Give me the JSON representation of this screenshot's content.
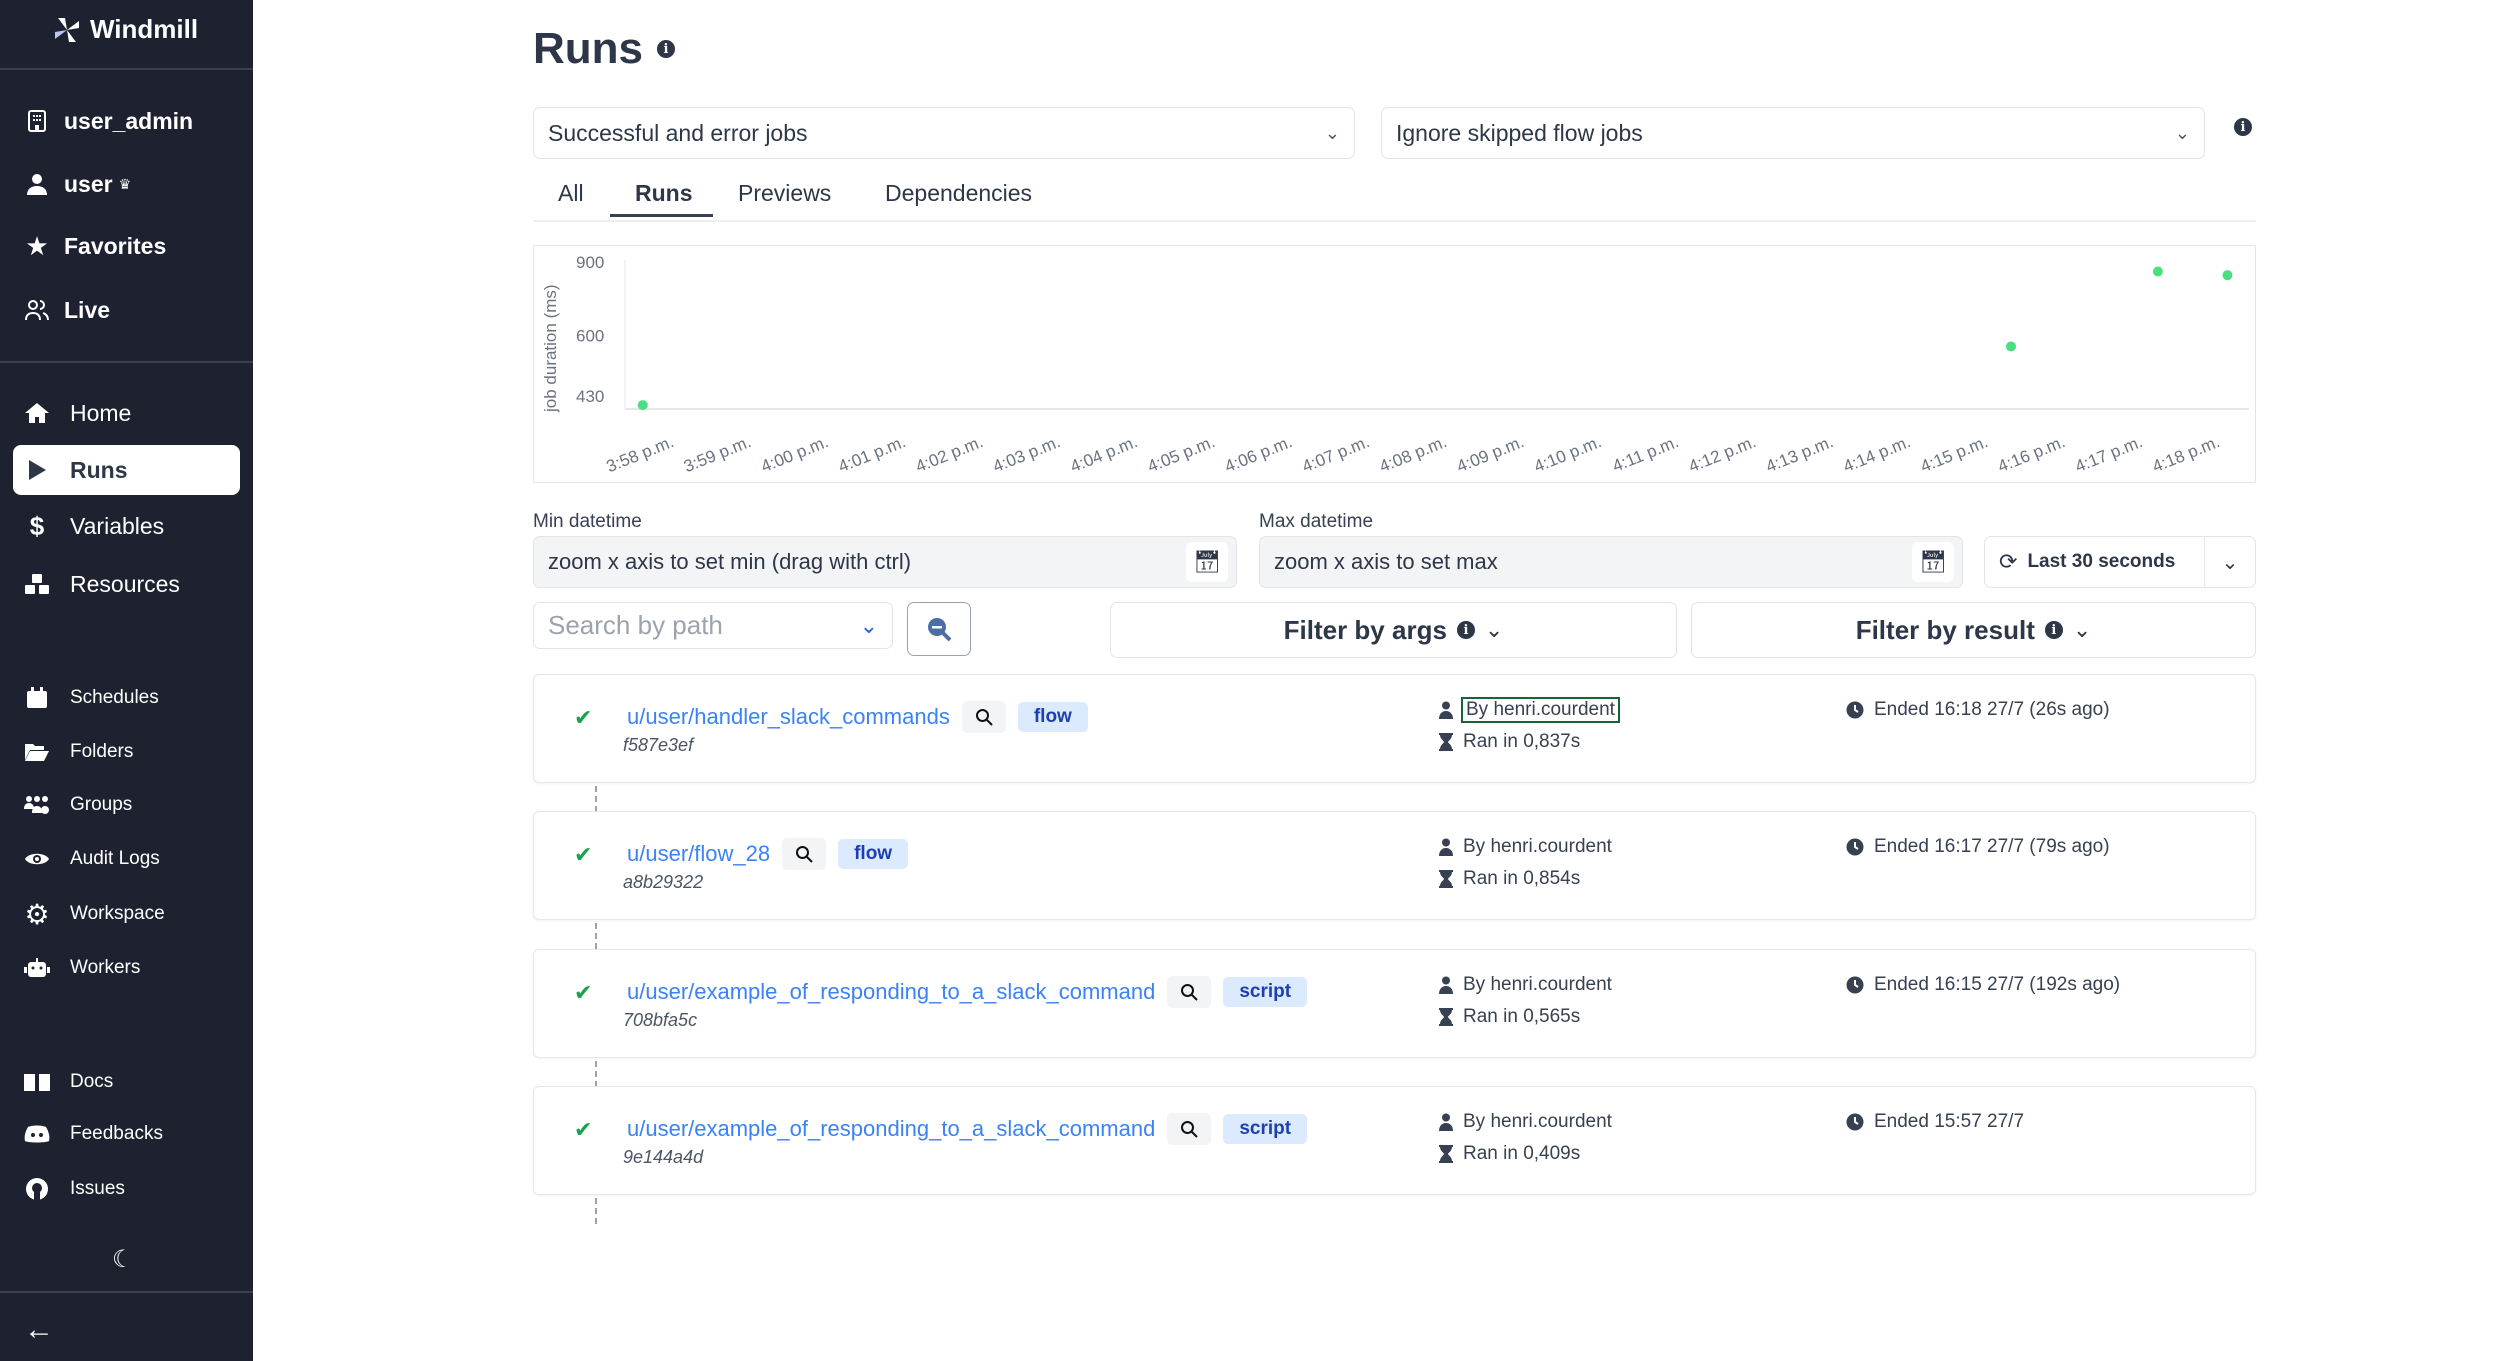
{
  "sidebar": {
    "brand": "Windmill",
    "top_items": [
      {
        "label": "user_admin",
        "icon": "building-icon"
      },
      {
        "label": "user",
        "icon": "user-icon",
        "badge_icon": "crown-icon"
      },
      {
        "label": "Favorites",
        "icon": "star-icon"
      },
      {
        "label": "Live",
        "icon": "users-icon"
      }
    ],
    "main_items": [
      {
        "label": "Home",
        "icon": "home-icon"
      },
      {
        "label": "Runs",
        "icon": "play-icon",
        "active": true
      },
      {
        "label": "Variables",
        "icon": "dollar-icon"
      },
      {
        "label": "Resources",
        "icon": "cubes-icon"
      }
    ],
    "secondary_items": [
      {
        "label": "Schedules",
        "icon": "calendar-icon"
      },
      {
        "label": "Folders",
        "icon": "folder-open-icon"
      },
      {
        "label": "Groups",
        "icon": "users-cog-icon"
      },
      {
        "label": "Audit Logs",
        "icon": "eye-icon"
      },
      {
        "label": "Workspace",
        "icon": "gear-icon"
      },
      {
        "label": "Workers",
        "icon": "robot-icon"
      }
    ],
    "help_items": [
      {
        "label": "Docs",
        "icon": "book-icon"
      },
      {
        "label": "Feedbacks",
        "icon": "discord-icon"
      },
      {
        "label": "Issues",
        "icon": "github-icon"
      }
    ]
  },
  "page": {
    "title": "Runs"
  },
  "filters": {
    "job_kind": "Successful and error jobs",
    "skipped": "Ignore skipped flow jobs"
  },
  "tabs": [
    {
      "label": "All"
    },
    {
      "label": "Runs",
      "active": true
    },
    {
      "label": "Previews"
    },
    {
      "label": "Dependencies"
    }
  ],
  "chart_data": {
    "type": "scatter",
    "ylabel": "job duration (ms)",
    "xlabel": "",
    "yscale": "log",
    "yticks": [
      430,
      600,
      900
    ],
    "xticks": [
      "3:58 p.m.",
      "3:59 p.m.",
      "4:00 p.m.",
      "4:01 p.m.",
      "4:02 p.m.",
      "4:03 p.m.",
      "4:04 p.m.",
      "4:05 p.m.",
      "4:06 p.m.",
      "4:07 p.m.",
      "4:08 p.m.",
      "4:09 p.m.",
      "4:10 p.m.",
      "4:11 p.m.",
      "4:12 p.m.",
      "4:13 p.m.",
      "4:14 p.m.",
      "4:15 p.m.",
      "4:16 p.m.",
      "4:17 p.m.",
      "4:18 p.m."
    ],
    "points": [
      {
        "x": "15:57:35",
        "y": 409
      },
      {
        "x": "16:15:17",
        "y": 565
      },
      {
        "x": "16:17:11",
        "y": 854
      },
      {
        "x": "16:18:05",
        "y": 837
      }
    ],
    "color": "#4ade80",
    "grid": false
  },
  "datetime": {
    "min_label": "Min datetime",
    "min_value": "zoom x axis to set min (drag with ctrl)",
    "max_label": "Max datetime",
    "max_value": "zoom x axis to set max",
    "refresh": "Last 30 seconds"
  },
  "search": {
    "placeholder": "Search by path"
  },
  "filter_args": "Filter by args",
  "filter_result": "Filter by result",
  "runs": [
    {
      "path": "u/user/handler_slack_commands",
      "kind": "flow",
      "hash": "f587e3ef",
      "by": "By henri.courdent",
      "ran": "Ran in 0,837s",
      "ended": "Ended 16:18 27/7 (26s ago)"
    },
    {
      "path": "u/user/flow_28",
      "kind": "flow",
      "hash": "a8b29322",
      "by": "By henri.courdent",
      "ran": "Ran in 0,854s",
      "ended": "Ended 16:17 27/7 (79s ago)"
    },
    {
      "path": "u/user/example_of_responding_to_a_slack_command",
      "kind": "script",
      "hash": "708bfa5c",
      "by": "By henri.courdent",
      "ran": "Ran in 0,565s",
      "ended": "Ended 16:15 27/7 (192s ago)"
    },
    {
      "path": "u/user/example_of_responding_to_a_slack_command",
      "kind": "script",
      "hash": "9e144a4d",
      "by": "By henri.courdent",
      "ran": "Ran in 0,409s",
      "ended": "Ended 15:57 27/7"
    }
  ]
}
